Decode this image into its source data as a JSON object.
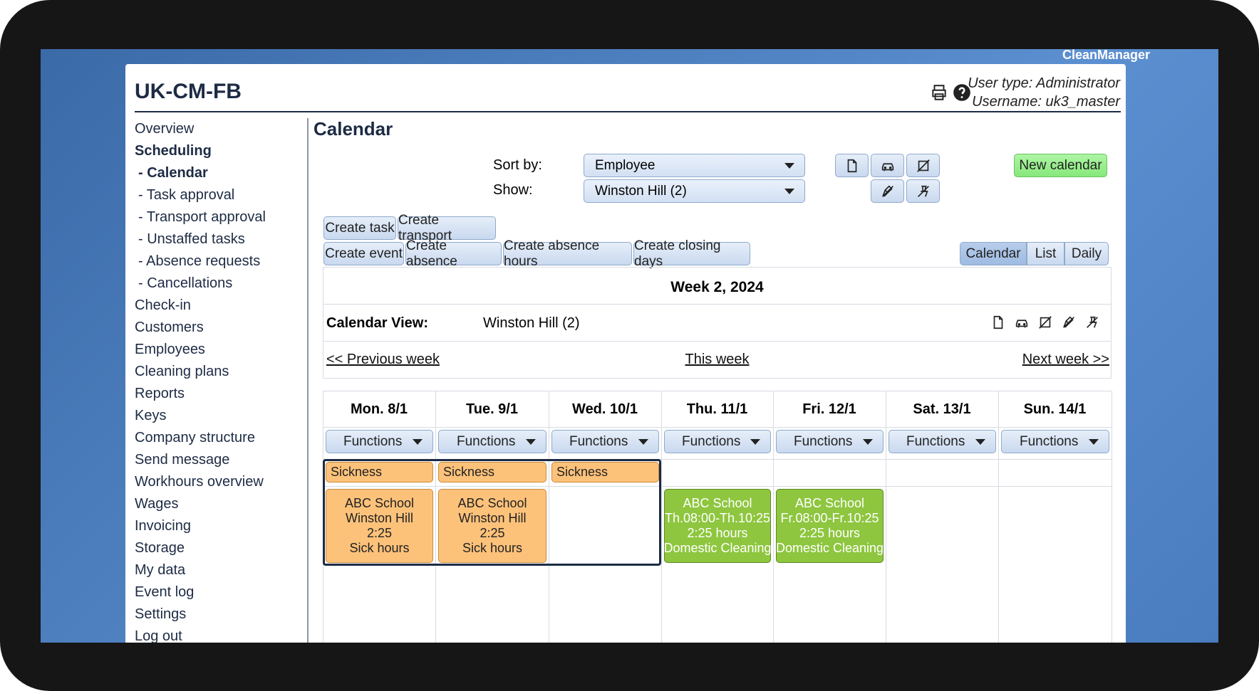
{
  "header": {
    "brand": "CleanManager",
    "title": "UK-CM-FB",
    "user_type": "User type: Administrator",
    "username": "Username: uk3_master"
  },
  "sidebar": [
    "Overview",
    "Scheduling",
    "- Calendar",
    "- Task approval",
    "- Transport approval",
    "- Unstaffed tasks",
    "- Absence requests",
    "- Cancellations",
    "Check-in",
    "Customers",
    "Employees",
    "Cleaning plans",
    "Reports",
    "Keys",
    "Company structure",
    "Send message",
    "Workhours overview",
    "Wages",
    "Invoicing",
    "Storage",
    "My data",
    "Event log",
    "Settings",
    "Log out"
  ],
  "page": {
    "title": "Calendar",
    "sort_label": "Sort by:",
    "sort_value": "Employee",
    "show_label": "Show:",
    "show_value": "Winston Hill (2)",
    "new_button": "New calendar",
    "create_row1": [
      "Create task",
      "Create transport"
    ],
    "create_row2": [
      "Create event",
      "Create absence",
      "Create absence hours",
      "Create closing days"
    ],
    "views": [
      "Calendar",
      "List",
      "Daily"
    ]
  },
  "calendar": {
    "week": "Week 2, 2024",
    "view_label": "Calendar View:",
    "view_value": "Winston Hill (2)",
    "prev": "<< Previous week",
    "this": "This week",
    "next": "Next week >>",
    "days": [
      {
        "label": "Mon. 8/1",
        "functions": "Functions",
        "absence": "Sickness",
        "task": [
          "ABC School",
          "Winston Hill",
          "2:25",
          "Sick hours"
        ]
      },
      {
        "label": "Tue. 9/1",
        "functions": "Functions",
        "absence": "Sickness",
        "task": [
          "ABC School",
          "Winston Hill",
          "2:25",
          "Sick hours"
        ]
      },
      {
        "label": "Wed. 10/1",
        "functions": "Functions",
        "absence": "Sickness"
      },
      {
        "label": "Thu. 11/1",
        "functions": "Functions",
        "task": [
          "ABC School",
          "Th.08:00-Th.10:25",
          "2:25 hours",
          "Domestic Cleaning"
        ]
      },
      {
        "label": "Fri. 12/1",
        "functions": "Functions",
        "task": [
          "ABC School",
          "Fr.08:00-Fr.10:25",
          "2:25 hours",
          "Domestic Cleaning"
        ]
      },
      {
        "label": "Sat. 13/1",
        "functions": "Functions"
      },
      {
        "label": "Sun. 14/1",
        "functions": "Functions"
      }
    ]
  }
}
